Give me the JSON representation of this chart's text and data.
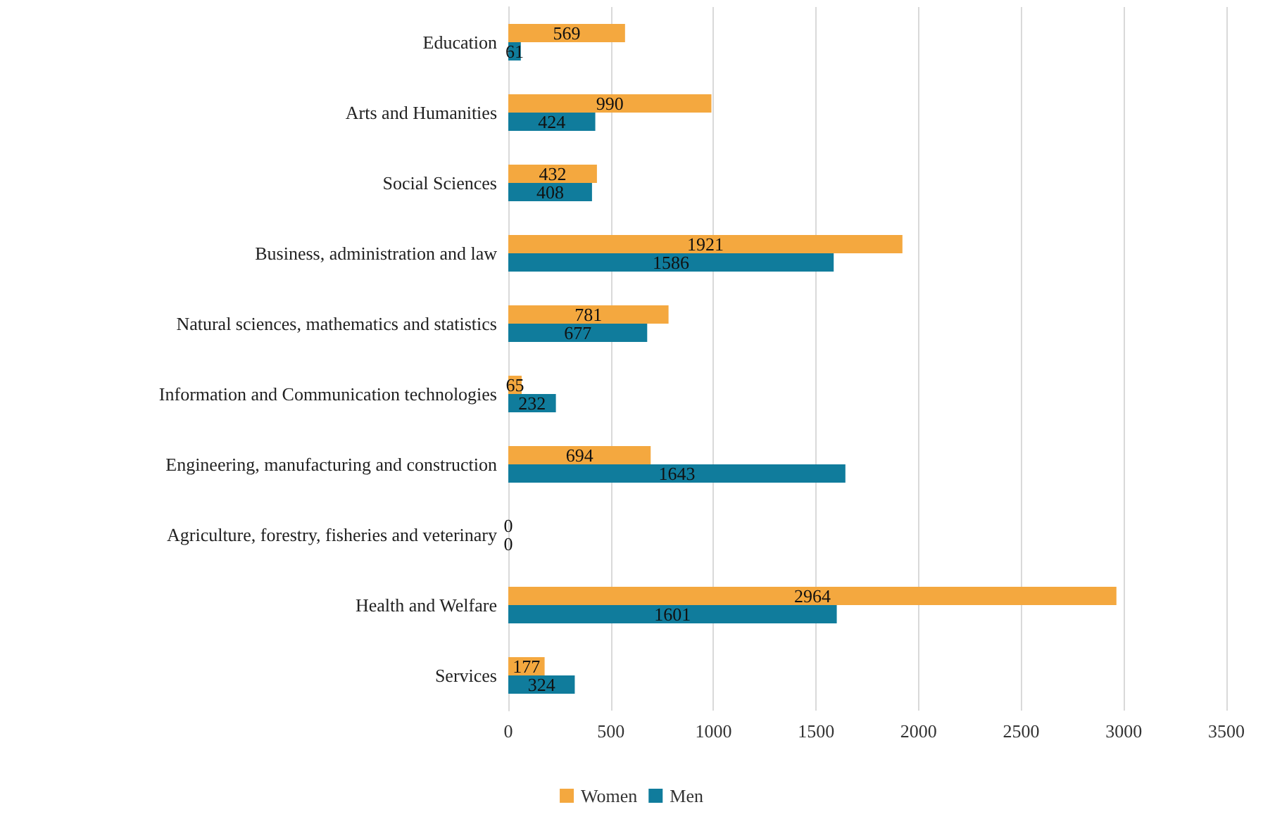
{
  "chart_data": {
    "type": "bar",
    "orientation": "horizontal",
    "categories": [
      "Education",
      "Arts and Humanities",
      "Social Sciences",
      "Business, administration and law",
      "Natural sciences, mathematics and statistics",
      "Information and Communication technologies",
      "Engineering, manufacturing and construction",
      "Agriculture, forestry, fisheries and veterinary",
      "Health and Welfare",
      "Services"
    ],
    "series": [
      {
        "name": "Women",
        "color": "#f4a83f",
        "values": [
          569,
          990,
          432,
          1921,
          781,
          65,
          694,
          0,
          2964,
          177
        ]
      },
      {
        "name": "Men",
        "color": "#107c9c",
        "values": [
          61,
          424,
          408,
          1586,
          677,
          232,
          1643,
          0,
          1601,
          324
        ]
      }
    ],
    "xlim": [
      0,
      3500
    ],
    "xticks": [
      0,
      500,
      1000,
      1500,
      2000,
      2500,
      3000,
      3500
    ],
    "grid": "x",
    "legend": "bottom",
    "data_labels": true
  }
}
